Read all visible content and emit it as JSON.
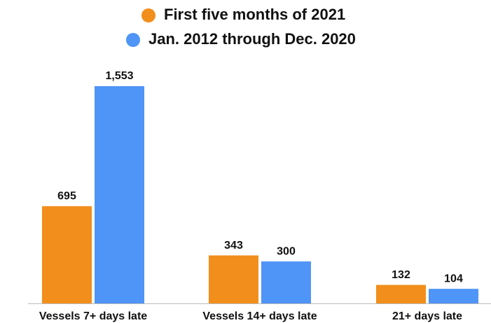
{
  "chart_data": {
    "type": "bar",
    "categories": [
      "Vessels 7+ days late",
      "Vessels 14+ days late",
      "21+ days late"
    ],
    "series": [
      {
        "name": "First five months of 2021",
        "color": "#f28e1c",
        "values": [
          695,
          343,
          132
        ]
      },
      {
        "name": "Jan. 2012 through Dec. 2020",
        "color": "#4f94f7",
        "values": [
          1553,
          300,
          104
        ],
        "value_labels": [
          "1,553",
          "300",
          "104"
        ]
      }
    ]
  }
}
